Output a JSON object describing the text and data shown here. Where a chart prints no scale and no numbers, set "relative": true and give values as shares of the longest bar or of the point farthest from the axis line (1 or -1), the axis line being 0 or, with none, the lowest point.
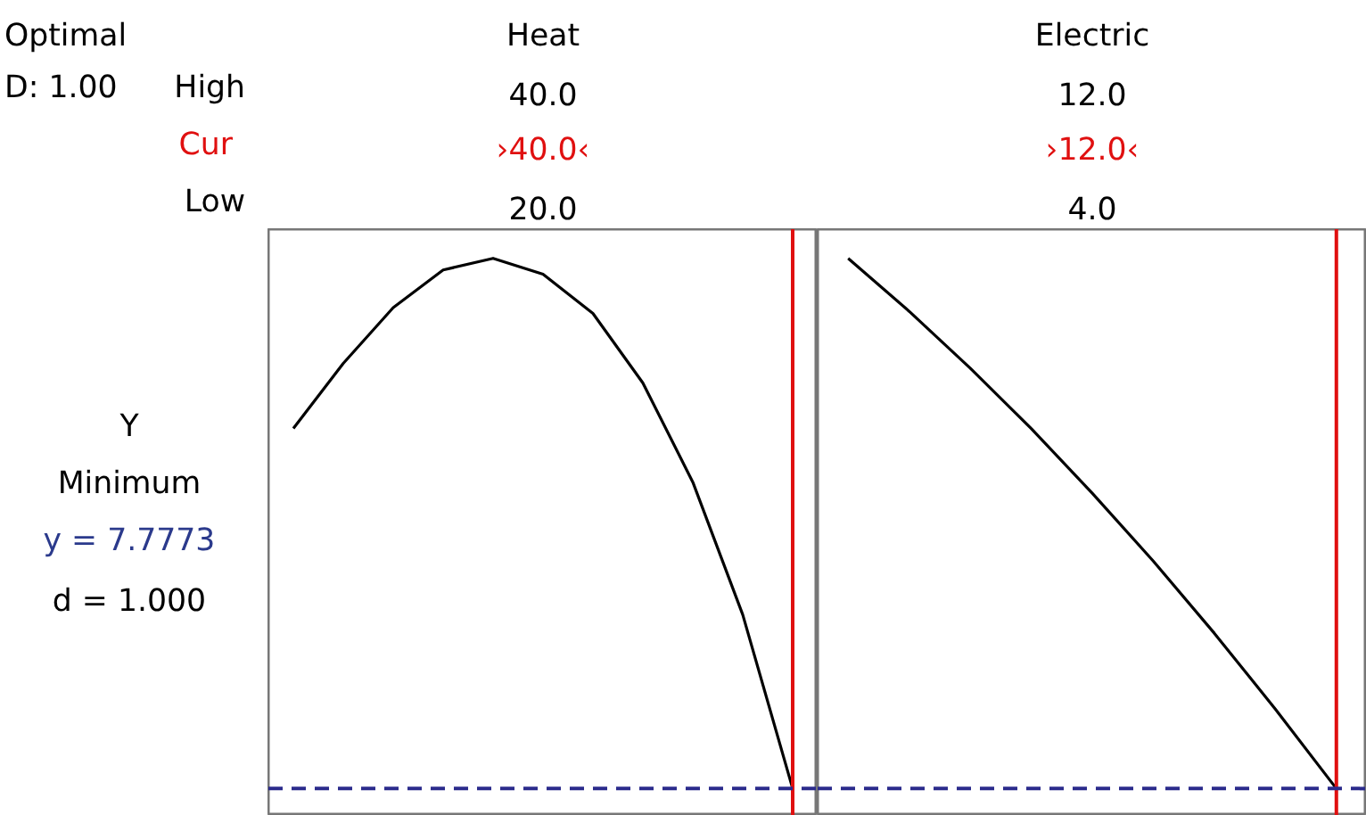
{
  "chart_data": [
    {
      "type": "line",
      "title": "Heat",
      "relative": true,
      "color": "#000000",
      "categories": [
        null,
        null,
        null,
        null,
        null,
        null,
        null,
        null,
        null,
        null,
        null
      ],
      "values": [
        0.679,
        0.802,
        0.907,
        0.978,
        1,
        0.97,
        0.896,
        0.765,
        0.578,
        0.328,
        0
      ],
      "annotations": [
        "40.0",
        "›40.0‹",
        "20.0"
      ],
      "ref_lines": [
        {
          "axis": "x",
          "color": "#e01010"
        },
        {
          "axis": "y",
          "value": 0,
          "color": "#2b2b8c",
          "line_style": "dashed"
        }
      ]
    },
    {
      "type": "line",
      "title": "Electric",
      "relative": true,
      "color": "#000000",
      "categories": [
        null,
        null,
        null,
        null,
        null,
        null,
        null,
        null,
        null
      ],
      "values": [
        1,
        0.9,
        0.793,
        0.679,
        0.557,
        0.429,
        0.293,
        0.15,
        0
      ],
      "annotations": [
        "12.0",
        "›12.0‹",
        "4.0"
      ],
      "ref_lines": [
        {
          "axis": "x",
          "color": "#e01010"
        },
        {
          "axis": "y",
          "value": 0,
          "color": "#2b2b8c",
          "line_style": "dashed"
        }
      ]
    },
    {
      "type": "other",
      "annotations": [
        "Optimal",
        "D: 1.00",
        "High",
        "Cur",
        "Low",
        "Y",
        "Minimum",
        "y = 7.7773",
        "d = 1.000"
      ]
    }
  ]
}
